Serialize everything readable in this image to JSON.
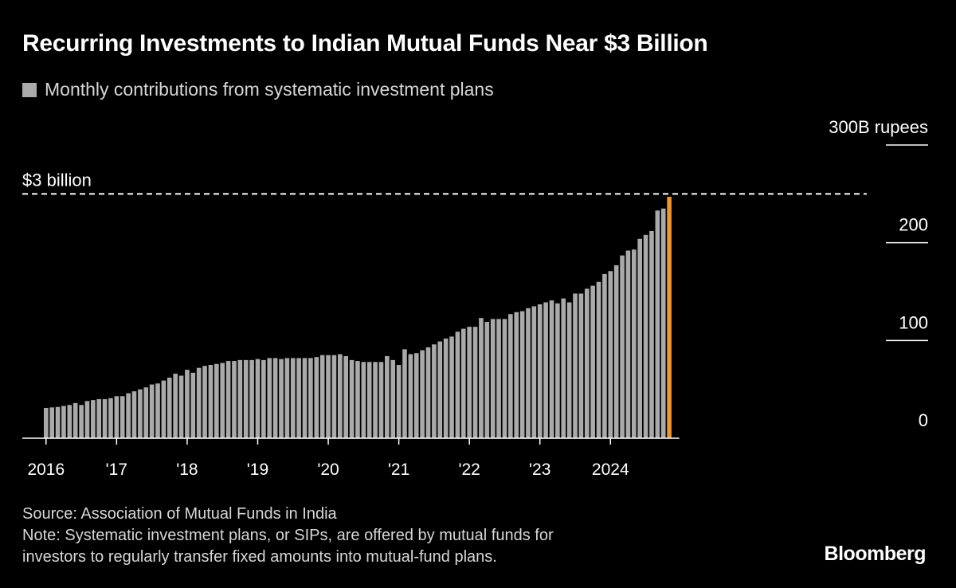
{
  "title": "Recurring Investments to Indian Mutual Funds Near $3 Billion",
  "legend": {
    "label": "Monthly contributions from systematic investment plans",
    "color": "#aaaaaa"
  },
  "source": "Source: Association of Mutual Funds in India",
  "note_line1": "Note: Systematic investment plans, or SIPs, are offered by mutual funds for",
  "note_line2": "investors to regularly transfer fixed amounts into mutual-fund plans.",
  "brand": "Bloomberg",
  "chart_data": {
    "type": "bar",
    "x_start": "2016-01",
    "y_unit": "300B rupees",
    "ylim": [
      0,
      300
    ],
    "y_ticks": [
      {
        "value": 0,
        "label": "0"
      },
      {
        "value": 100,
        "label": "100"
      },
      {
        "value": 200,
        "label": "200"
      },
      {
        "value": 300,
        "label": "300B rupees"
      }
    ],
    "x_ticks": [
      {
        "month_index": 0,
        "label": "2016"
      },
      {
        "month_index": 12,
        "label": "'17"
      },
      {
        "month_index": 24,
        "label": "'18"
      },
      {
        "month_index": 36,
        "label": "'19"
      },
      {
        "month_index": 48,
        "label": "'20"
      },
      {
        "month_index": 60,
        "label": "'21"
      },
      {
        "month_index": 72,
        "label": "'22"
      },
      {
        "month_index": 84,
        "label": "'23"
      },
      {
        "month_index": 96,
        "label": "2024"
      }
    ],
    "reference_line": {
      "value": 250,
      "label": "$3 billion"
    },
    "grid": false,
    "bar_color": "#aaaaaa",
    "highlight_color": "#f0962e",
    "highlight_last": true,
    "series": [
      {
        "name": "Monthly contributions from systematic investment plans",
        "values": [
          31,
          31.5,
          32,
          33,
          34,
          36,
          34,
          38,
          39,
          40,
          40,
          41,
          43,
          43,
          46,
          48,
          50,
          52,
          55,
          56,
          59,
          62,
          66,
          64,
          70,
          67,
          72,
          74,
          75,
          76,
          77,
          79,
          79,
          80,
          80,
          80,
          81,
          80,
          82,
          82,
          81,
          82,
          82,
          82,
          82,
          82,
          83,
          85,
          85,
          85,
          86,
          84,
          80,
          79,
          78,
          78,
          78,
          78,
          84,
          80,
          75,
          91,
          86,
          87,
          90,
          93,
          96,
          99,
          102,
          104,
          109,
          112,
          114,
          114,
          123,
          119,
          122,
          122,
          122,
          127,
          129,
          130,
          133,
          135,
          137,
          139,
          141,
          138,
          143,
          139,
          148,
          148,
          153,
          156,
          160,
          168,
          171,
          177,
          187,
          192,
          193,
          204,
          208,
          212,
          233,
          235,
          247
        ]
      }
    ]
  }
}
